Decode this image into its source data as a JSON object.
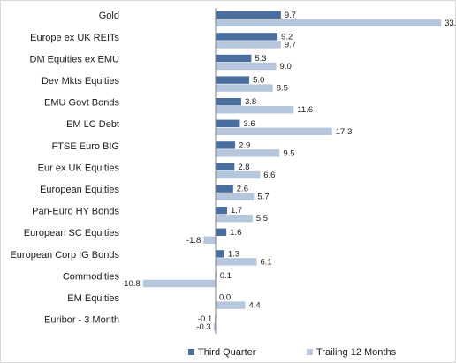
{
  "chart_data": {
    "type": "bar",
    "orientation": "horizontal",
    "categories": [
      "Gold",
      "Europe ex UK REITs",
      "DM Equities ex EMU",
      "Dev Mkts Equities",
      "EMU Govt Bonds",
      "EM LC Debt",
      "FTSE Euro BIG",
      "Eur ex UK Equities",
      "European Equities",
      "Pan-Euro HY Bonds",
      "European SC Equities",
      "European Corp IG Bonds",
      "Commodities",
      "EM Equities",
      "Euribor - 3 Month"
    ],
    "series": [
      {
        "name": "Third Quarter",
        "color": "#4a6f9f",
        "values": [
          9.7,
          9.2,
          5.3,
          5.0,
          3.8,
          3.6,
          2.9,
          2.8,
          2.6,
          1.7,
          1.6,
          1.3,
          0.1,
          0.0,
          -0.1
        ],
        "labels": [
          "9.7",
          "9.2",
          "5.3",
          "5.0",
          "3.8",
          "3.6",
          "2.9",
          "2.8",
          "2.6",
          "1.7",
          "1.6",
          "1.3",
          "0.1",
          "0.0",
          "-0.1"
        ]
      },
      {
        "name": "Trailing 12 Months",
        "color": "#b6c6dc",
        "values": [
          33.5,
          9.7,
          9.0,
          8.5,
          11.6,
          17.3,
          9.5,
          6.6,
          5.7,
          5.5,
          -1.8,
          6.1,
          -10.8,
          4.4,
          -0.3
        ],
        "labels": [
          "33.5",
          "9.7",
          "9.0",
          "8.5",
          "11.6",
          "17.3",
          "9.5",
          "6.6",
          "5.7",
          "5.5",
          "-1.8",
          "6.1",
          "-10.8",
          "4.4",
          "-0.3"
        ]
      }
    ],
    "xlim": [
      -13.0,
      34.0
    ],
    "grid": false,
    "legend_position": "bottom"
  }
}
